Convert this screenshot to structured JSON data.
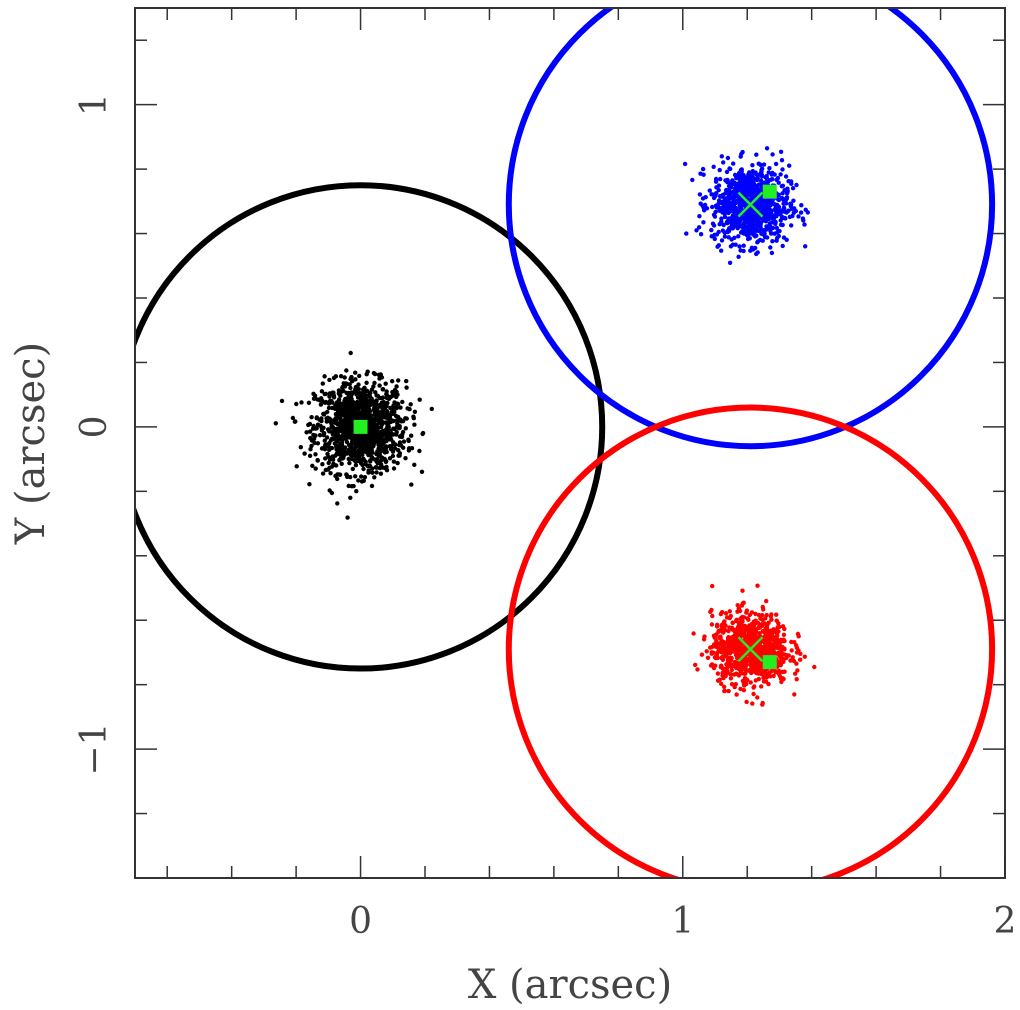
{
  "chart_data": {
    "type": "scatter",
    "title": "",
    "xlabel": "X (arcsec)",
    "ylabel": "Y (arcsec)",
    "xlim": [
      -0.7,
      2.0
    ],
    "ylim": [
      -1.4,
      1.3
    ],
    "x_major_ticks": [
      0,
      1,
      2
    ],
    "x_minor_step": 0.2,
    "y_major_ticks": [
      -1,
      0,
      1
    ],
    "y_minor_step": 0.2,
    "x_tick_labels": [
      "0",
      "1",
      "2"
    ],
    "y_tick_labels": [
      "−1",
      "0",
      "1"
    ],
    "grid": false,
    "legend": "none",
    "series": [
      {
        "color": "#000000",
        "circle": {
          "cx": 0.0,
          "cy": 0.0,
          "r": 0.75
        },
        "cloud": {
          "center_x": 0.0,
          "center_y": 0.0,
          "spread_x": 0.07,
          "spread_y": 0.07,
          "count": 1200
        },
        "green_square": {
          "x": 0.0,
          "y": 0.0
        },
        "cross": null
      },
      {
        "color": "#0000ff",
        "circle": {
          "cx": 1.21,
          "cy": 0.69,
          "r": 0.75
        },
        "cloud": {
          "center_x": 1.21,
          "center_y": 0.69,
          "spread_x": 0.06,
          "spread_y": 0.06,
          "count": 900
        },
        "green_square": {
          "x": 1.27,
          "y": 0.73
        },
        "cross": {
          "x": 1.21,
          "y": 0.69
        }
      },
      {
        "color": "#ff0000",
        "circle": {
          "cx": 1.21,
          "cy": -0.69,
          "r": 0.75
        },
        "cloud": {
          "center_x": 1.21,
          "center_y": -0.69,
          "spread_x": 0.06,
          "spread_y": 0.055,
          "count": 900
        },
        "green_square": {
          "x": 1.27,
          "y": -0.73
        },
        "cross": {
          "x": 1.21,
          "y": -0.69
        }
      }
    ],
    "marker_color": "#22ee22"
  }
}
